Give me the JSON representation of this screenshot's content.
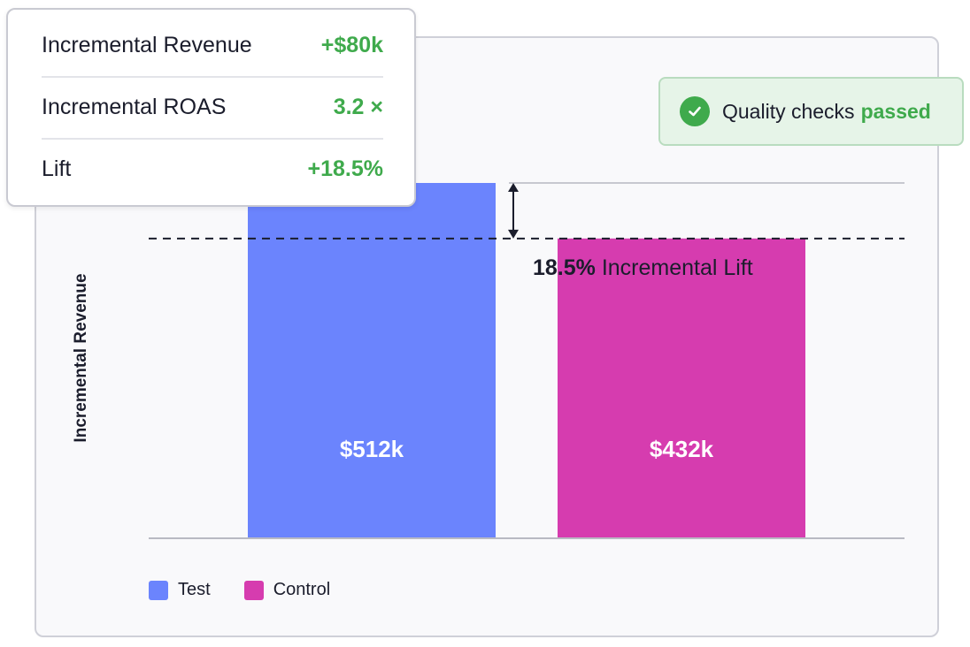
{
  "metrics": [
    {
      "label": "Incremental Revenue",
      "value": "+$80k"
    },
    {
      "label": "Incremental ROAS",
      "value": "3.2 ×"
    },
    {
      "label": "Lift",
      "value": "+18.5%"
    }
  ],
  "quality": {
    "prefix": "Quality checks",
    "status": "passed"
  },
  "colors": {
    "test": "#6b84fd",
    "control": "#d63caf",
    "positive": "#3faa4c"
  },
  "chart_data": {
    "type": "bar",
    "categories": [
      "Test",
      "Control"
    ],
    "values": [
      512,
      432
    ],
    "value_labels": [
      "$512k",
      "$432k"
    ],
    "ylabel": "Incremental Revenue",
    "ylim": [
      0,
      512
    ],
    "reference_line": {
      "value": 432,
      "style": "dashed"
    },
    "annotation": {
      "bold": "18.5%",
      "text": "Incremental Lift"
    },
    "legend": [
      {
        "name": "Test",
        "color": "#6b84fd"
      },
      {
        "name": "Control",
        "color": "#d63caf"
      }
    ],
    "legend_position": "bottom-left",
    "grid": false
  }
}
